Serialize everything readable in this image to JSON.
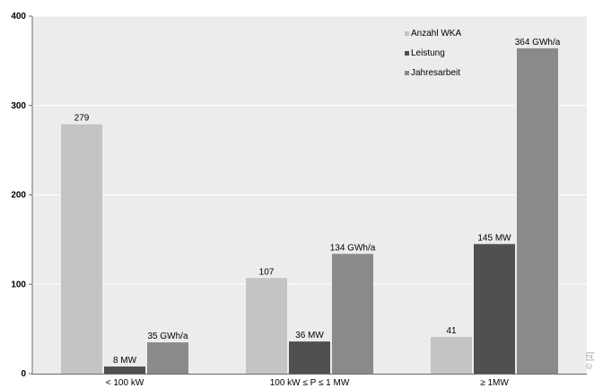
{
  "chart_data": {
    "type": "bar",
    "categories": [
      "< 100 kW",
      "100 kW ≤ P ≤ 1 MW",
      "≥ 1MW"
    ],
    "series": [
      {
        "name": "Anzahl WKA",
        "values": [
          279,
          107,
          41
        ],
        "labels": [
          "279",
          "107",
          "41"
        ],
        "color": "#c4c4c4"
      },
      {
        "name": "Leistung",
        "values": [
          8,
          36,
          145
        ],
        "labels": [
          "8 MW",
          "36 MW",
          "145 MW"
        ],
        "color": "#505050"
      },
      {
        "name": "Jahresarbeit",
        "values": [
          35,
          134,
          364
        ],
        "labels": [
          "35 GWh/a",
          "134 GWh/a",
          "364 GWh/a"
        ],
        "color": "#8a8a8a"
      }
    ],
    "yticks": [
      "0",
      "100",
      "200",
      "300",
      "400"
    ],
    "ylim": [
      0,
      400
    ],
    "grid": true,
    "legend": "top-right",
    "background": "#ececec",
    "credit": "© [2]"
  }
}
